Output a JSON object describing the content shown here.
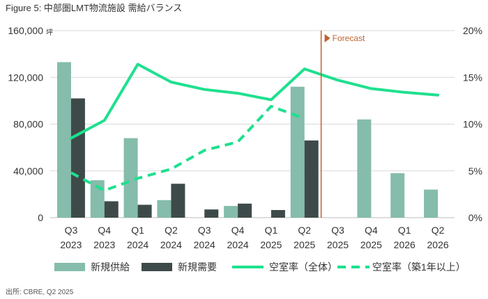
{
  "figure_title": "Figure 5: 中部圏LMT物流施設 需給バランス",
  "source": "出所: CBRE, Q2 2025",
  "left_unit": "坪",
  "forecast_label": "Forecast",
  "colors": {
    "supply": "#85bcab",
    "demand": "#3e4a4a",
    "vacancy_line": "#1fe08f",
    "forecast_line": "#c0622f",
    "grid": "#d9d9d9",
    "text": "#333333"
  },
  "chart_data": {
    "type": "bar",
    "categories": [
      [
        "Q3",
        "2023"
      ],
      [
        "Q4",
        "2023"
      ],
      [
        "Q1",
        "2024"
      ],
      [
        "Q2",
        "2024"
      ],
      [
        "Q3",
        "2024"
      ],
      [
        "Q4",
        "2024"
      ],
      [
        "Q1",
        "2025"
      ],
      [
        "Q2",
        "2025"
      ],
      [
        "Q3",
        "2025"
      ],
      [
        "Q4",
        "2025"
      ],
      [
        "Q1",
        "2026"
      ],
      [
        "Q2",
        "2026"
      ]
    ],
    "y_left": {
      "min": 0,
      "max": 160000,
      "ticks": [
        0,
        40000,
        80000,
        120000,
        160000
      ],
      "tick_labels": [
        "0",
        "40,000",
        "80,000",
        "120,000",
        "160,000"
      ]
    },
    "y_right": {
      "min": 0,
      "max": 20,
      "ticks": [
        0,
        5,
        10,
        15,
        20
      ],
      "tick_labels": [
        "0%",
        "5%",
        "10%",
        "15%",
        "20%"
      ]
    },
    "grid": true,
    "legend_position": "bottom",
    "forecast_start_after_index": 7,
    "series": [
      {
        "name": "新規供給",
        "kind": "bar",
        "axis": "left",
        "values": [
          133000,
          32000,
          68000,
          15000,
          0,
          10000,
          0,
          112000,
          0,
          84000,
          38000,
          24000
        ]
      },
      {
        "name": "新規需要",
        "kind": "bar",
        "axis": "left",
        "values": [
          102000,
          14000,
          11000,
          29000,
          7000,
          12000,
          6500,
          66000,
          null,
          null,
          null,
          null
        ]
      },
      {
        "name": "空室率（全体）",
        "kind": "line",
        "axis": "right",
        "values": [
          8.5,
          10.4,
          16.4,
          14.5,
          13.7,
          13.3,
          12.6,
          15.9,
          14.7,
          13.8,
          13.4,
          13.1
        ]
      },
      {
        "name": "空室率（築1年以上）",
        "kind": "dashed-line",
        "axis": "right",
        "values": [
          4.8,
          2.9,
          4.2,
          5.2,
          7.2,
          8.1,
          11.9,
          10.6,
          null,
          null,
          null,
          null
        ]
      }
    ]
  }
}
